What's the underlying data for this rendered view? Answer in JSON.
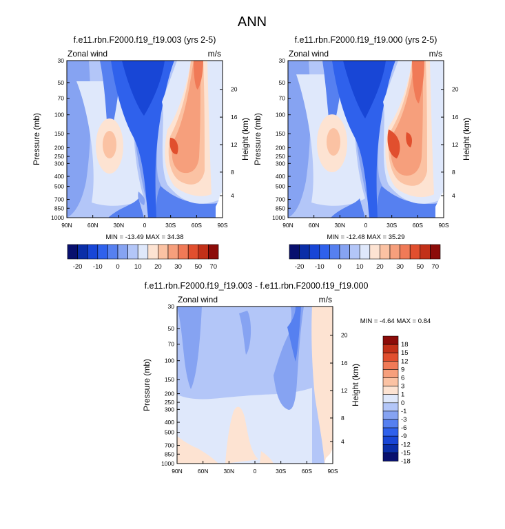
{
  "figure": {
    "title": "ANN",
    "pressure_ticks": [
      "30",
      "50",
      "70",
      "100",
      "150",
      "200",
      "250",
      "300",
      "400",
      "500",
      "700",
      "850",
      "1000"
    ],
    "height_ticks": [
      "4",
      "8",
      "12",
      "16",
      "20"
    ],
    "lat_ticks": [
      "90N",
      "60N",
      "30N",
      "0",
      "30S",
      "60S",
      "90S"
    ]
  },
  "colors": {
    "horiz_scale": [
      "#08106e",
      "#0a2ea8",
      "#1846d6",
      "#2f61ec",
      "#5680f0",
      "#86a3f2",
      "#b3c6f8",
      "#dfe8fb",
      "#fde3d2",
      "#fbc2a3",
      "#f69f7c",
      "#f07a57",
      "#e14f2e",
      "#c23018",
      "#8c0c09"
    ],
    "vert_scale": [
      "#08106e",
      "#0a2ea8",
      "#1846d6",
      "#2f61ec",
      "#5680f0",
      "#86a3f2",
      "#b3c6f8",
      "#dfe8fb",
      "#fde3d2",
      "#fbc2a3",
      "#f69f7c",
      "#f07a57",
      "#e14f2e",
      "#c23018",
      "#8c0c09"
    ]
  },
  "chart_data": [
    {
      "type": "heatmap",
      "id": "top-left",
      "title": "f.e11.rbn.F2000.f19_f19.003 (yrs 2-5)",
      "left_label": "Zonal wind",
      "right_label": "m/s",
      "ylabel": "Pressure (mb)",
      "ylabel_right": "Height (km)",
      "stats": "MIN = -13.49  MAX = 34.38",
      "min": -13.49,
      "max": 34.38,
      "x": [
        "90N",
        "60N",
        "30N",
        "0",
        "30S",
        "60S",
        "90S"
      ],
      "y": [
        "30",
        "50",
        "70",
        "100",
        "150",
        "200",
        "250",
        "300",
        "400",
        "500",
        "700",
        "850",
        "1000"
      ],
      "levels": [
        -20,
        -10,
        0,
        10,
        20,
        30,
        50,
        70
      ]
    },
    {
      "type": "heatmap",
      "id": "top-right",
      "title": "f.e11.rbn.F2000.f19_f19.000 (yrs 2-5)",
      "left_label": "Zonal wind",
      "right_label": "m/s",
      "ylabel": "Pressure (mb)",
      "ylabel_right": "Height (km)",
      "stats": "MIN = -12.48  MAX =  35.29",
      "min": -12.48,
      "max": 35.29,
      "x": [
        "90N",
        "60N",
        "30N",
        "0",
        "30S",
        "60S",
        "90S"
      ],
      "y": [
        "30",
        "50",
        "70",
        "100",
        "150",
        "200",
        "250",
        "300",
        "400",
        "500",
        "700",
        "850",
        "1000"
      ],
      "levels": [
        -20,
        -10,
        0,
        10,
        20,
        30,
        50,
        70
      ]
    },
    {
      "type": "heatmap",
      "id": "difference",
      "title": "f.e11.rbn.F2000.f19_f19.003 - f.e11.rbn.F2000.f19_f19.000",
      "left_label": "Zonal wind",
      "right_label": "m/s",
      "ylabel": "Pressure (mb)",
      "ylabel_right": "Height (km)",
      "stats": "MIN =  -4.64  MAX =   0.84",
      "min": -4.64,
      "max": 0.84,
      "x": [
        "90N",
        "60N",
        "30N",
        "0",
        "30S",
        "60S",
        "90S"
      ],
      "y": [
        "30",
        "50",
        "70",
        "100",
        "150",
        "200",
        "250",
        "300",
        "400",
        "500",
        "700",
        "850",
        "1000"
      ],
      "levels": [
        -18,
        -15,
        -12,
        -9,
        -6,
        -3,
        -1,
        0,
        1,
        3,
        6,
        9,
        12,
        15,
        18
      ]
    }
  ]
}
